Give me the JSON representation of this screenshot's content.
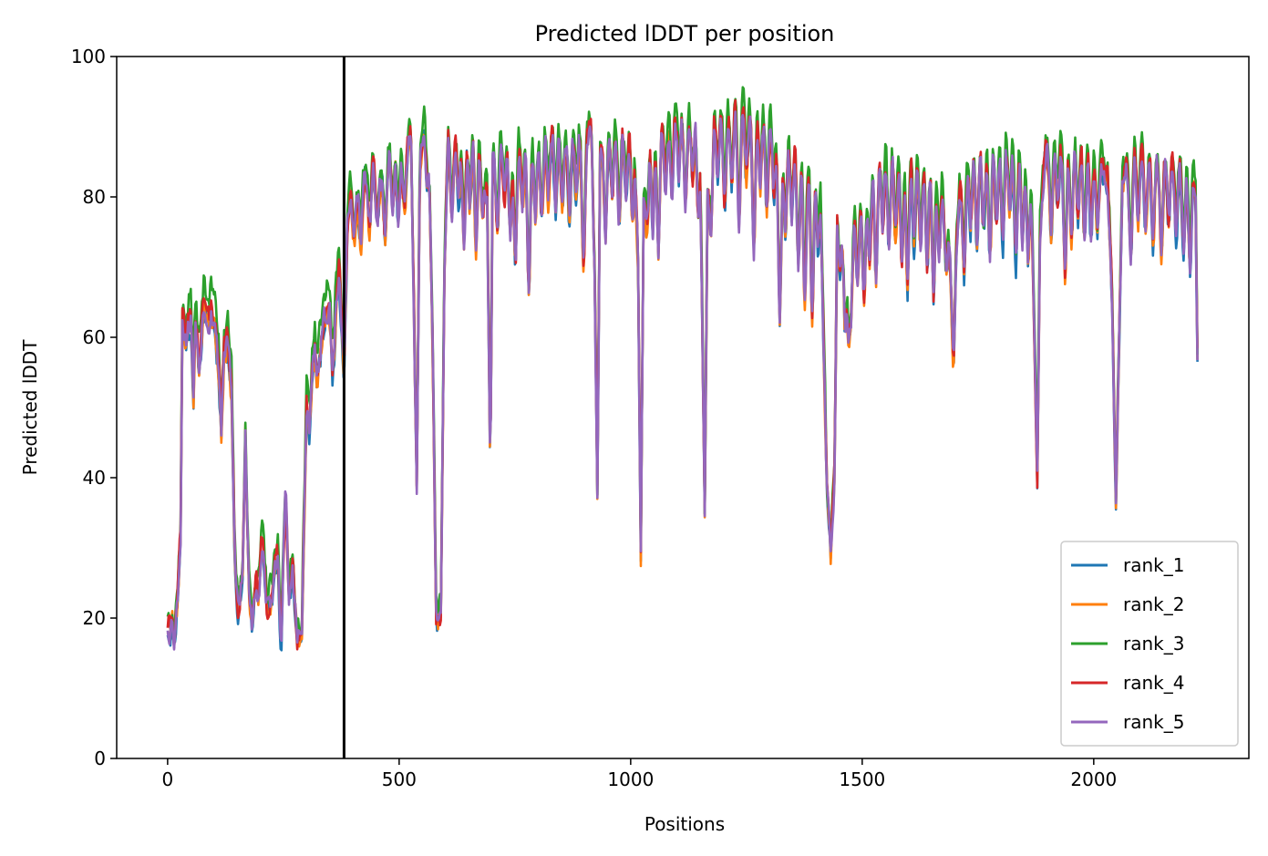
{
  "chart_data": {
    "type": "line",
    "title": "Predicted lDDT per position",
    "xlabel": "Positions",
    "ylabel": "Predicted lDDT",
    "xlim": [
      -110,
      2335
    ],
    "ylim": [
      0,
      100
    ],
    "xticks": [
      0,
      500,
      1000,
      1500,
      2000
    ],
    "yticks": [
      0,
      20,
      40,
      60,
      80,
      100
    ],
    "grid": false,
    "legend_position": "lower-right",
    "vline_x": 381,
    "vline_color": "#000000",
    "series": [
      {
        "name": "rank_1",
        "color": "#1f77b4",
        "offset": -0.6,
        "seed": 11
      },
      {
        "name": "rank_2",
        "color": "#ff7f0e",
        "offset": -0.3,
        "seed": 23
      },
      {
        "name": "rank_3",
        "color": "#2ca02c",
        "offset": 2.0,
        "seed": 37
      },
      {
        "name": "rank_4",
        "color": "#d62728",
        "offset": 0.4,
        "seed": 41
      },
      {
        "name": "rank_5",
        "color": "#9467bd",
        "offset": 0.0,
        "seed": 53
      }
    ],
    "profile": [
      [
        0,
        19
      ],
      [
        5,
        18
      ],
      [
        10,
        20
      ],
      [
        14,
        17
      ],
      [
        20,
        21
      ],
      [
        28,
        32
      ],
      [
        32,
        62
      ],
      [
        40,
        60
      ],
      [
        50,
        63
      ],
      [
        56,
        52
      ],
      [
        60,
        62
      ],
      [
        70,
        60
      ],
      [
        80,
        65
      ],
      [
        90,
        60
      ],
      [
        100,
        63
      ],
      [
        110,
        56
      ],
      [
        116,
        47
      ],
      [
        122,
        58
      ],
      [
        130,
        60
      ],
      [
        138,
        52
      ],
      [
        145,
        29
      ],
      [
        155,
        22
      ],
      [
        162,
        27
      ],
      [
        168,
        46
      ],
      [
        175,
        25
      ],
      [
        182,
        19
      ],
      [
        192,
        27
      ],
      [
        205,
        31
      ],
      [
        215,
        21
      ],
      [
        228,
        24
      ],
      [
        238,
        30
      ],
      [
        246,
        24
      ],
      [
        255,
        38
      ],
      [
        262,
        22
      ],
      [
        270,
        27
      ],
      [
        280,
        17
      ],
      [
        290,
        18
      ],
      [
        300,
        50
      ],
      [
        310,
        55
      ],
      [
        320,
        60
      ],
      [
        330,
        58
      ],
      [
        340,
        63
      ],
      [
        350,
        65
      ],
      [
        360,
        62
      ],
      [
        370,
        70
      ],
      [
        381,
        55
      ],
      [
        388,
        75
      ],
      [
        395,
        82
      ],
      [
        410,
        79
      ],
      [
        420,
        83
      ],
      [
        440,
        85
      ],
      [
        460,
        82
      ],
      [
        480,
        87
      ],
      [
        500,
        86
      ],
      [
        515,
        85
      ],
      [
        525,
        90
      ],
      [
        533,
        60
      ],
      [
        538,
        38
      ],
      [
        545,
        85
      ],
      [
        555,
        90
      ],
      [
        565,
        85
      ],
      [
        572,
        60
      ],
      [
        580,
        20
      ],
      [
        590,
        20
      ],
      [
        598,
        70
      ],
      [
        605,
        88
      ],
      [
        620,
        89
      ],
      [
        640,
        88
      ],
      [
        660,
        90
      ],
      [
        680,
        87
      ],
      [
        690,
        80
      ],
      [
        697,
        40
      ],
      [
        702,
        85
      ],
      [
        720,
        88
      ],
      [
        740,
        87
      ],
      [
        760,
        88
      ],
      [
        780,
        87
      ],
      [
        800,
        88
      ],
      [
        820,
        89
      ],
      [
        840,
        90
      ],
      [
        860,
        88
      ],
      [
        880,
        90
      ],
      [
        900,
        88
      ],
      [
        915,
        90
      ],
      [
        922,
        70
      ],
      [
        928,
        37
      ],
      [
        934,
        85
      ],
      [
        950,
        90
      ],
      [
        970,
        89
      ],
      [
        990,
        90
      ],
      [
        1008,
        88
      ],
      [
        1016,
        70
      ],
      [
        1022,
        29
      ],
      [
        1028,
        80
      ],
      [
        1040,
        90
      ],
      [
        1060,
        92
      ],
      [
        1080,
        91
      ],
      [
        1100,
        92
      ],
      [
        1120,
        91
      ],
      [
        1140,
        92
      ],
      [
        1150,
        88
      ],
      [
        1155,
        60
      ],
      [
        1160,
        34
      ],
      [
        1166,
        80
      ],
      [
        1180,
        92
      ],
      [
        1200,
        93
      ],
      [
        1220,
        92
      ],
      [
        1240,
        93
      ],
      [
        1260,
        92
      ],
      [
        1280,
        92
      ],
      [
        1300,
        91
      ],
      [
        1320,
        88
      ],
      [
        1340,
        88
      ],
      [
        1360,
        87
      ],
      [
        1380,
        85
      ],
      [
        1400,
        84
      ],
      [
        1410,
        80
      ],
      [
        1418,
        55
      ],
      [
        1424,
        38
      ],
      [
        1432,
        29
      ],
      [
        1440,
        40
      ],
      [
        1446,
        75
      ],
      [
        1452,
        70
      ],
      [
        1460,
        78
      ],
      [
        1470,
        62
      ],
      [
        1478,
        75
      ],
      [
        1490,
        82
      ],
      [
        1500,
        80
      ],
      [
        1520,
        84
      ],
      [
        1540,
        86
      ],
      [
        1560,
        87
      ],
      [
        1580,
        86
      ],
      [
        1600,
        87
      ],
      [
        1620,
        86
      ],
      [
        1640,
        84
      ],
      [
        1660,
        84
      ],
      [
        1680,
        82
      ],
      [
        1690,
        70
      ],
      [
        1697,
        55
      ],
      [
        1703,
        72
      ],
      [
        1710,
        80
      ],
      [
        1730,
        86
      ],
      [
        1750,
        87
      ],
      [
        1770,
        86
      ],
      [
        1790,
        88
      ],
      [
        1810,
        88
      ],
      [
        1830,
        87
      ],
      [
        1850,
        86
      ],
      [
        1865,
        80
      ],
      [
        1872,
        60
      ],
      [
        1878,
        40
      ],
      [
        1884,
        75
      ],
      [
        1895,
        86
      ],
      [
        1920,
        88
      ],
      [
        1940,
        87
      ],
      [
        1960,
        88
      ],
      [
        1980,
        88
      ],
      [
        2000,
        86
      ],
      [
        2015,
        85
      ],
      [
        2030,
        82
      ],
      [
        2040,
        65
      ],
      [
        2048,
        36
      ],
      [
        2055,
        60
      ],
      [
        2062,
        82
      ],
      [
        2080,
        86
      ],
      [
        2100,
        87
      ],
      [
        2120,
        86
      ],
      [
        2140,
        85
      ],
      [
        2160,
        86
      ],
      [
        2180,
        85
      ],
      [
        2200,
        84
      ],
      [
        2215,
        84
      ],
      [
        2220,
        80
      ],
      [
        2224,
        57
      ]
    ],
    "dips": [
      [
        68,
        4
      ],
      [
        92,
        -3
      ],
      [
        150,
        3
      ],
      [
        196,
        5
      ],
      [
        244,
        7
      ],
      [
        307,
        6
      ],
      [
        323,
        5
      ],
      [
        356,
        8
      ],
      [
        402,
        7
      ],
      [
        418,
        8
      ],
      [
        436,
        9
      ],
      [
        452,
        7
      ],
      [
        470,
        10
      ],
      [
        486,
        8
      ],
      [
        498,
        9
      ],
      [
        511,
        7
      ],
      [
        561,
        6
      ],
      [
        614,
        12
      ],
      [
        628,
        9
      ],
      [
        640,
        14
      ],
      [
        653,
        10
      ],
      [
        666,
        16
      ],
      [
        680,
        9
      ],
      [
        712,
        11
      ],
      [
        727,
        8
      ],
      [
        740,
        12
      ],
      [
        751,
        17
      ],
      [
        766,
        9
      ],
      [
        780,
        20
      ],
      [
        794,
        10
      ],
      [
        808,
        12
      ],
      [
        822,
        9
      ],
      [
        838,
        11
      ],
      [
        852,
        10
      ],
      [
        868,
        12
      ],
      [
        882,
        9
      ],
      [
        898,
        18
      ],
      [
        946,
        14
      ],
      [
        960,
        10
      ],
      [
        975,
        12
      ],
      [
        990,
        9
      ],
      [
        1004,
        12
      ],
      [
        1036,
        11
      ],
      [
        1048,
        15
      ],
      [
        1060,
        20
      ],
      [
        1075,
        9
      ],
      [
        1089,
        11
      ],
      [
        1104,
        8
      ],
      [
        1118,
        12
      ],
      [
        1134,
        9
      ],
      [
        1146,
        13
      ],
      [
        1174,
        11
      ],
      [
        1188,
        9
      ],
      [
        1203,
        14
      ],
      [
        1218,
        10
      ],
      [
        1234,
        16
      ],
      [
        1250,
        9
      ],
      [
        1266,
        20
      ],
      [
        1280,
        10
      ],
      [
        1294,
        13
      ],
      [
        1309,
        9
      ],
      [
        1322,
        25
      ],
      [
        1334,
        12
      ],
      [
        1348,
        10
      ],
      [
        1362,
        16
      ],
      [
        1376,
        20
      ],
      [
        1392,
        22
      ],
      [
        1404,
        9
      ],
      [
        1462,
        12
      ],
      [
        1476,
        10
      ],
      [
        1490,
        14
      ],
      [
        1504,
        15
      ],
      [
        1516,
        12
      ],
      [
        1530,
        16
      ],
      [
        1544,
        10
      ],
      [
        1558,
        14
      ],
      [
        1572,
        12
      ],
      [
        1586,
        16
      ],
      [
        1598,
        20
      ],
      [
        1612,
        13
      ],
      [
        1626,
        12
      ],
      [
        1640,
        14
      ],
      [
        1654,
        18
      ],
      [
        1666,
        11
      ],
      [
        1680,
        12
      ],
      [
        1720,
        14
      ],
      [
        1734,
        10
      ],
      [
        1748,
        13
      ],
      [
        1762,
        11
      ],
      [
        1776,
        15
      ],
      [
        1790,
        12
      ],
      [
        1804,
        14
      ],
      [
        1818,
        10
      ],
      [
        1832,
        16
      ],
      [
        1846,
        12
      ],
      [
        1858,
        11
      ],
      [
        1908,
        12
      ],
      [
        1922,
        9
      ],
      [
        1938,
        18
      ],
      [
        1952,
        13
      ],
      [
        1966,
        11
      ],
      [
        1980,
        14
      ],
      [
        1994,
        12
      ],
      [
        2008,
        10
      ],
      [
        2080,
        14
      ],
      [
        2096,
        10
      ],
      [
        2112,
        11
      ],
      [
        2128,
        12
      ],
      [
        2146,
        13
      ],
      [
        2162,
        9
      ],
      [
        2178,
        10
      ],
      [
        2194,
        12
      ],
      [
        2208,
        14
      ]
    ],
    "length": 2225
  }
}
